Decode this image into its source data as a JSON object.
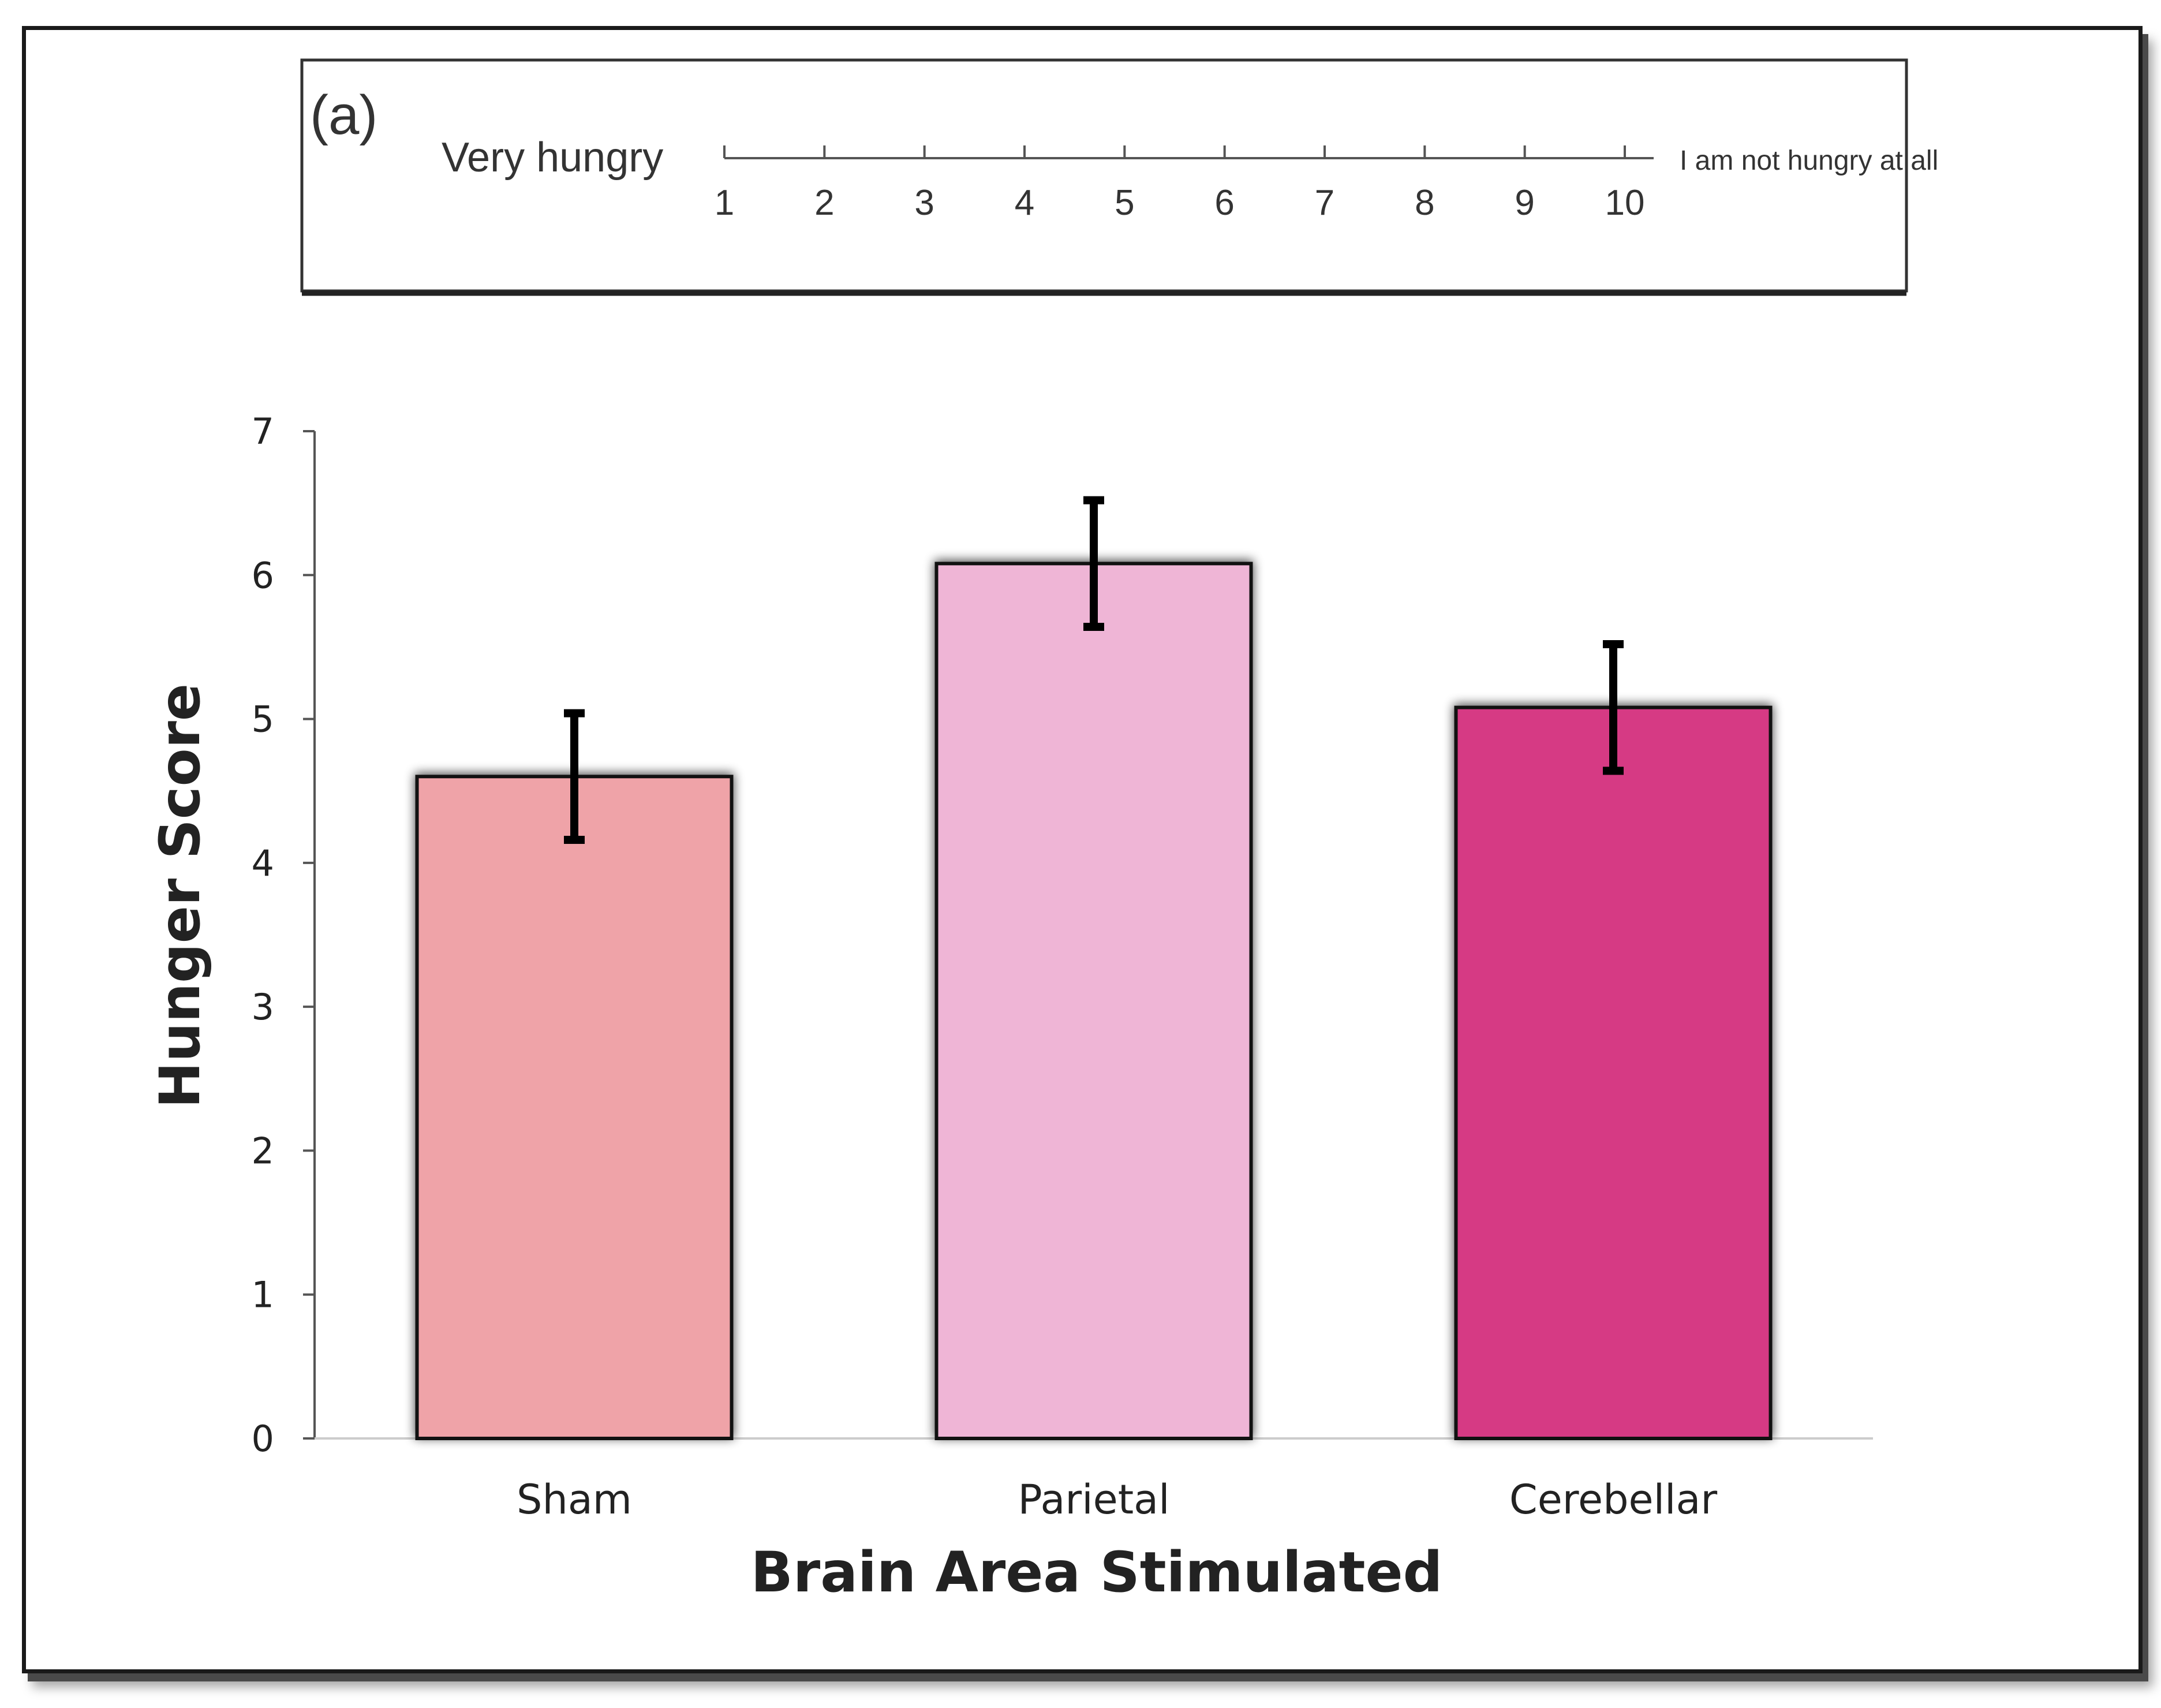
{
  "scale_box": {
    "panel_label": "(a)",
    "left_label": "Very hungry",
    "right_label": "I am not hungry at all",
    "ticks": [
      "1",
      "2",
      "3",
      "4",
      "5",
      "6",
      "7",
      "8",
      "9",
      "10"
    ]
  },
  "chart_data": {
    "type": "bar",
    "categories": [
      "Sham",
      "Parietal",
      "Cerebellar"
    ],
    "values": [
      4.6,
      6.08,
      5.08
    ],
    "error": [
      0.44,
      0.44,
      0.44
    ],
    "xlabel": "Brain Area Stimulated",
    "ylabel": "Hunger Score",
    "ylim": [
      0,
      7
    ],
    "yticks": [
      "0",
      "1",
      "2",
      "3",
      "4",
      "5",
      "6",
      "7"
    ],
    "colors": [
      "#efa3a8",
      "#efb5d6",
      "#d63a84"
    ],
    "grid": false
  }
}
